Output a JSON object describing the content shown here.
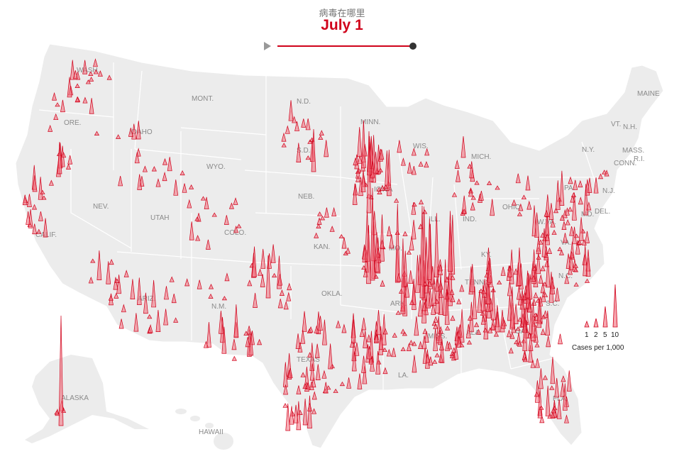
{
  "header": {
    "kicker": "病毒在哪里",
    "date": "July 1"
  },
  "colors": {
    "spike_fill": "#f26b7a",
    "spike_stroke": "#d0021b",
    "land": "#ececec",
    "border": "#ffffff",
    "label": "#8a8a8a"
  },
  "labels": [
    {
      "text": "WASH.",
      "id": "wash"
    },
    {
      "text": "ORE.",
      "id": "ore"
    },
    {
      "text": "IDAHO",
      "id": "idaho"
    },
    {
      "text": "MONT.",
      "id": "mont"
    },
    {
      "text": "WYO.",
      "id": "wyo"
    },
    {
      "text": "N.D.",
      "id": "nd"
    },
    {
      "text": "S.D.",
      "id": "sd"
    },
    {
      "text": "MINN.",
      "id": "minn"
    },
    {
      "text": "WIS.",
      "id": "wis"
    },
    {
      "text": "MICH.",
      "id": "mich"
    },
    {
      "text": "NEV.",
      "id": "nev"
    },
    {
      "text": "UTAH",
      "id": "utah"
    },
    {
      "text": "CALIF.",
      "id": "calif"
    },
    {
      "text": "COLO.",
      "id": "colo"
    },
    {
      "text": "NEB.",
      "id": "neb"
    },
    {
      "text": "IOWA",
      "id": "iowa"
    },
    {
      "text": "ILL.",
      "id": "ill"
    },
    {
      "text": "IND.",
      "id": "ind"
    },
    {
      "text": "OHIO",
      "id": "ohio"
    },
    {
      "text": "PA.",
      "id": "pa"
    },
    {
      "text": "N.Y.",
      "id": "ny"
    },
    {
      "text": "MAINE",
      "id": "maine"
    },
    {
      "text": "VT.",
      "id": "vt"
    },
    {
      "text": "N.H.",
      "id": "nh"
    },
    {
      "text": "MASS.",
      "id": "mass"
    },
    {
      "text": "CONN.",
      "id": "conn"
    },
    {
      "text": "R.I.",
      "id": "ri"
    },
    {
      "text": "N.J.",
      "id": "nj"
    },
    {
      "text": "DEL.",
      "id": "del"
    },
    {
      "text": "MD.",
      "id": "md"
    },
    {
      "text": "W.VA.",
      "id": "wva"
    },
    {
      "text": "VA.",
      "id": "va"
    },
    {
      "text": "KAN.",
      "id": "kan"
    },
    {
      "text": "MO.",
      "id": "mo"
    },
    {
      "text": "KY.",
      "id": "ky"
    },
    {
      "text": "TENN.",
      "id": "tenn"
    },
    {
      "text": "ARIZ.",
      "id": "ariz"
    },
    {
      "text": "N.M.",
      "id": "nm"
    },
    {
      "text": "OKLA.",
      "id": "okla"
    },
    {
      "text": "ARK.",
      "id": "ark"
    },
    {
      "text": "MISS.",
      "id": "miss"
    },
    {
      "text": "ALA.",
      "id": "ala"
    },
    {
      "text": "GA.",
      "id": "ga"
    },
    {
      "text": "S.C.",
      "id": "sc"
    },
    {
      "text": "N.C.",
      "id": "nc"
    },
    {
      "text": "TEXAS",
      "id": "texas"
    },
    {
      "text": "LA.",
      "id": "la"
    },
    {
      "text": "FLA.",
      "id": "fla"
    },
    {
      "text": "ALASKA",
      "id": "alaska"
    },
    {
      "text": "HAWAII",
      "id": "hawaii"
    }
  ],
  "legend": {
    "values": [
      "1",
      "2",
      "5",
      "10"
    ],
    "caption": "Cases per 1,000"
  }
}
